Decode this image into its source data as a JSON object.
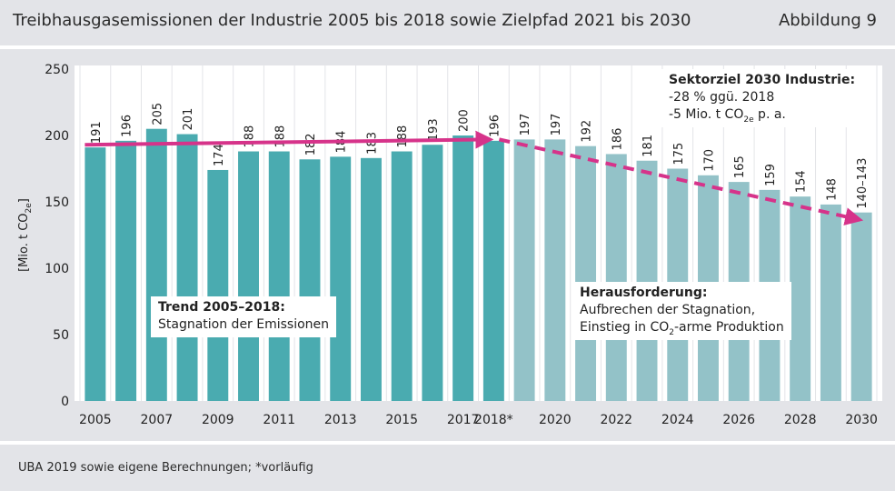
{
  "header": {
    "title": "Treibhausgasemissionen der Industrie 2005 bis 2018 sowie Zielpfad 2021 bis 2030",
    "figure_label": "Abbildung 9"
  },
  "footer": {
    "source": "UBA 2019 sowie eigene Berechnungen; *vorläufig"
  },
  "annotations": {
    "trend_title": "Trend 2005–2018:",
    "trend_text": "Stagnation der Emissionen",
    "challenge_title": "Herausforderung:",
    "challenge_line1": "Aufbrechen der Stagnation,",
    "challenge_line2_pre": "Einstieg in CO",
    "challenge_line2_sub": "2",
    "challenge_line2_post": "-arme Produktion",
    "target_title": "Sektorziel 2030 Industrie:",
    "target_line1": "-28 % ggü. 2018",
    "target_line2_pre": "-5 Mio. t CO",
    "target_line2_sub": "2e",
    "target_line2_post": " p. a."
  },
  "colors": {
    "historic_bar": "#4aabb0",
    "target_bar": "#93c2c8",
    "trend_arrow": "#d6338a",
    "background": "#e3e4e8"
  },
  "chart_data": {
    "type": "bar",
    "ylabel": "[Mio. t CO2e]",
    "ylim": [
      0,
      250
    ],
    "yticks": [
      0,
      50,
      100,
      150,
      200,
      250
    ],
    "grid": false,
    "categories": [
      "2005",
      "2006",
      "2007",
      "2008",
      "2009",
      "2010",
      "2011",
      "2012",
      "2013",
      "2014",
      "2015",
      "2016",
      "2017",
      "2018*",
      "2019",
      "2020",
      "2021",
      "2022",
      "2023",
      "2024",
      "2025",
      "2026",
      "2027",
      "2028",
      "2029",
      "2030"
    ],
    "xtick_labels_shown": [
      "2005",
      "2007",
      "2009",
      "2011",
      "2013",
      "2015",
      "2017",
      "2018*",
      "2020",
      "2022",
      "2024",
      "2026",
      "2028",
      "2030"
    ],
    "series": [
      {
        "values": [
          191,
          196,
          205,
          201,
          174,
          188,
          188,
          182,
          184,
          183,
          188,
          193,
          200,
          196,
          null,
          null,
          null,
          null,
          null,
          null,
          null,
          null,
          null,
          null,
          null,
          null
        ]
      },
      {
        "values": [
          null,
          null,
          null,
          null,
          null,
          null,
          null,
          null,
          null,
          null,
          null,
          null,
          null,
          null,
          197,
          197,
          192,
          186,
          181,
          175,
          170,
          165,
          159,
          154,
          148,
          142
        ]
      }
    ],
    "data_labels": [
      "191",
      "196",
      "205",
      "201",
      "174",
      "188",
      "188",
      "182",
      "184",
      "183",
      "188",
      "193",
      "200",
      "196",
      "197",
      "197",
      "192",
      "186",
      "181",
      "175",
      "170",
      "165",
      "159",
      "154",
      "148",
      "140–143"
    ],
    "trend_line": {
      "from": [
        "2005",
        193
      ],
      "to": [
        "2018*",
        197
      ]
    },
    "target_path": {
      "from": [
        "2018*",
        197
      ],
      "to": [
        "2030",
        142
      ]
    }
  }
}
